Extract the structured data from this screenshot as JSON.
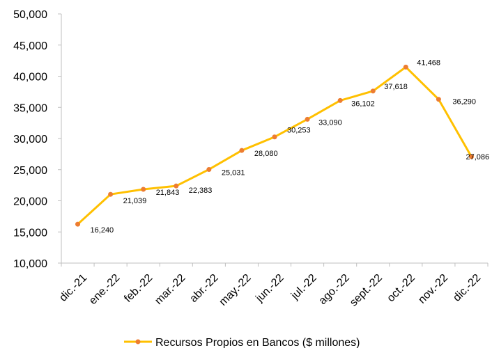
{
  "chart_data": {
    "type": "line",
    "categories": [
      "dic.-21",
      "ene.-22",
      "feb.-22",
      "mar.-22",
      "abr.-22",
      "may.-22",
      "jun.-22",
      "jul.-22",
      "ago.-22",
      "sept.-22",
      "oct.-22",
      "nov.-22",
      "dic.-22"
    ],
    "series": [
      {
        "name": "Recursos Propios en Bancos ($ millones)",
        "values": [
          16240,
          21039,
          21843,
          22383,
          25031,
          28080,
          30253,
          33090,
          36102,
          37618,
          41468,
          36290,
          27086
        ],
        "labels": [
          "16,240",
          "21,039",
          "21,843",
          "22,383",
          "25,031",
          "28,080",
          "30,253",
          "33,090",
          "36,102",
          "37,618",
          "41,468",
          "36,290",
          "27,086"
        ]
      }
    ],
    "ylim": [
      10000,
      50000
    ],
    "yticks": [
      10000,
      15000,
      20000,
      25000,
      30000,
      35000,
      40000,
      45000,
      50000
    ],
    "ytick_labels": [
      "10,000",
      "15,000",
      "20,000",
      "25,000",
      "30,000",
      "35,000",
      "40,000",
      "45,000",
      "50,000"
    ],
    "legend": "bottom",
    "grid": false,
    "colors": {
      "line": "#FFC000",
      "marker": "#ED7D31"
    }
  }
}
